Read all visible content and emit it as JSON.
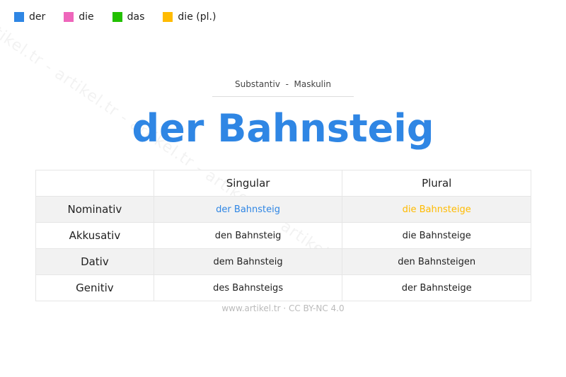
{
  "watermark": "artikel.tr - artikel.tr - artikel.tr - artikel.tr",
  "legend": [
    {
      "label": "der",
      "color": "#2f86e4"
    },
    {
      "label": "die",
      "color": "#ee66bb"
    },
    {
      "label": "das",
      "color": "#22c000"
    },
    {
      "label": "die (pl.)",
      "color": "#ffbb00"
    }
  ],
  "subtitle": "Substantiv  -  Maskulin",
  "title": "der Bahnsteig",
  "table": {
    "headers": [
      "",
      "Singular",
      "Plural"
    ],
    "rows": [
      [
        "Nominativ",
        "der Bahnsteig",
        "die Bahnsteige"
      ],
      [
        "Akkusativ",
        "den Bahnsteig",
        "die Bahnsteige"
      ],
      [
        "Dativ",
        "dem Bahnsteig",
        "den Bahnsteigen"
      ],
      [
        "Genitiv",
        "des Bahnsteigs",
        "der Bahnsteige"
      ]
    ]
  },
  "footer": "www.artikel.tr · CC BY-NC 4.0"
}
